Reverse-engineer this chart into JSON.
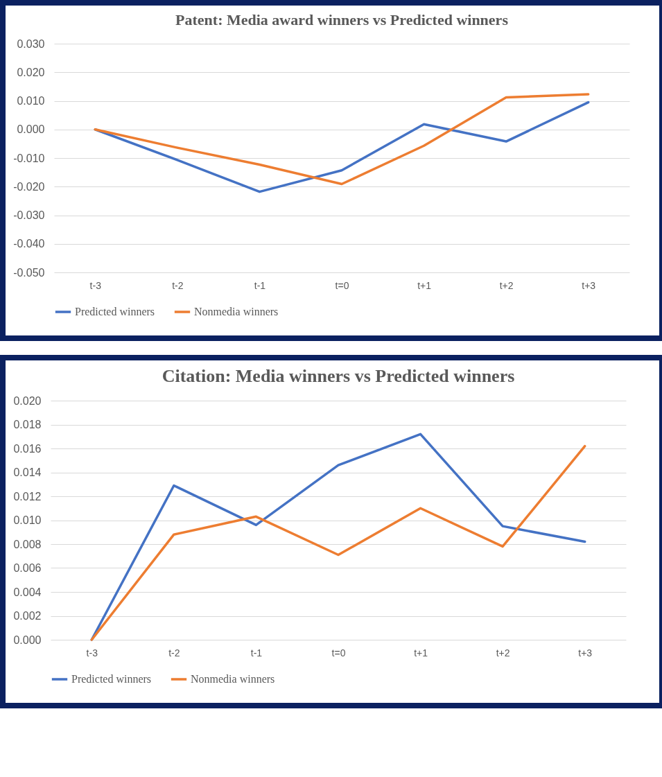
{
  "chart_data": [
    {
      "type": "line",
      "title": "Patent: Media award winners vs Predicted winners",
      "categories": [
        "t-3",
        "t-2",
        "t-1",
        "t=0",
        "t+1",
        "t+2",
        "t+3"
      ],
      "series": [
        {
          "name": "Predicted winners",
          "color": "#4472c4",
          "values": [
            0.0,
            -0.0107,
            -0.0218,
            -0.0143,
            0.0018,
            -0.0042,
            0.0095
          ]
        },
        {
          "name": "Nonmedia winners",
          "color": "#ed7d31",
          "values": [
            0.0,
            -0.0064,
            -0.0123,
            -0.0191,
            -0.0057,
            0.0112,
            0.0123
          ]
        }
      ],
      "ylim": [
        -0.05,
        0.03
      ],
      "yticks": [
        {
          "value": -0.05,
          "label": "-0.050"
        },
        {
          "value": -0.04,
          "label": "-0.040"
        },
        {
          "value": -0.03,
          "label": "-0.030"
        },
        {
          "value": -0.02,
          "label": "-0.020"
        },
        {
          "value": -0.01,
          "label": "-0.010"
        },
        {
          "value": 0,
          "label": "0.000"
        },
        {
          "value": 0.01,
          "label": "0.010"
        },
        {
          "value": 0.02,
          "label": "0.020"
        },
        {
          "value": 0.03,
          "label": "0.030"
        }
      ],
      "grid": "y",
      "legend": "bottom"
    },
    {
      "type": "line",
      "title": "Citation: Media winners vs Predicted winners",
      "categories": [
        "t-3",
        "t-2",
        "t-1",
        "t=0",
        "t+1",
        "t+2",
        "t+3"
      ],
      "series": [
        {
          "name": "Predicted winners",
          "color": "#4472c4",
          "values": [
            0.0,
            0.0129,
            0.0096,
            0.0146,
            0.0172,
            0.0095,
            0.0082
          ]
        },
        {
          "name": "Nonmedia winners",
          "color": "#ed7d31",
          "values": [
            0.0,
            0.0088,
            0.0103,
            0.0071,
            0.011,
            0.0078,
            0.0162
          ]
        }
      ],
      "ylim": [
        0,
        0.02
      ],
      "yticks": [
        {
          "value": 0,
          "label": "0.000"
        },
        {
          "value": 0.002,
          "label": "0.002"
        },
        {
          "value": 0.004,
          "label": "0.004"
        },
        {
          "value": 0.006,
          "label": "0.006"
        },
        {
          "value": 0.008,
          "label": "0.008"
        },
        {
          "value": 0.01,
          "label": "0.010"
        },
        {
          "value": 0.012,
          "label": "0.012"
        },
        {
          "value": 0.014,
          "label": "0.014"
        },
        {
          "value": 0.016,
          "label": "0.016"
        },
        {
          "value": 0.018,
          "label": "0.018"
        },
        {
          "value": 0.02,
          "label": "0.020"
        }
      ],
      "grid": "y",
      "legend": "bottom"
    }
  ]
}
